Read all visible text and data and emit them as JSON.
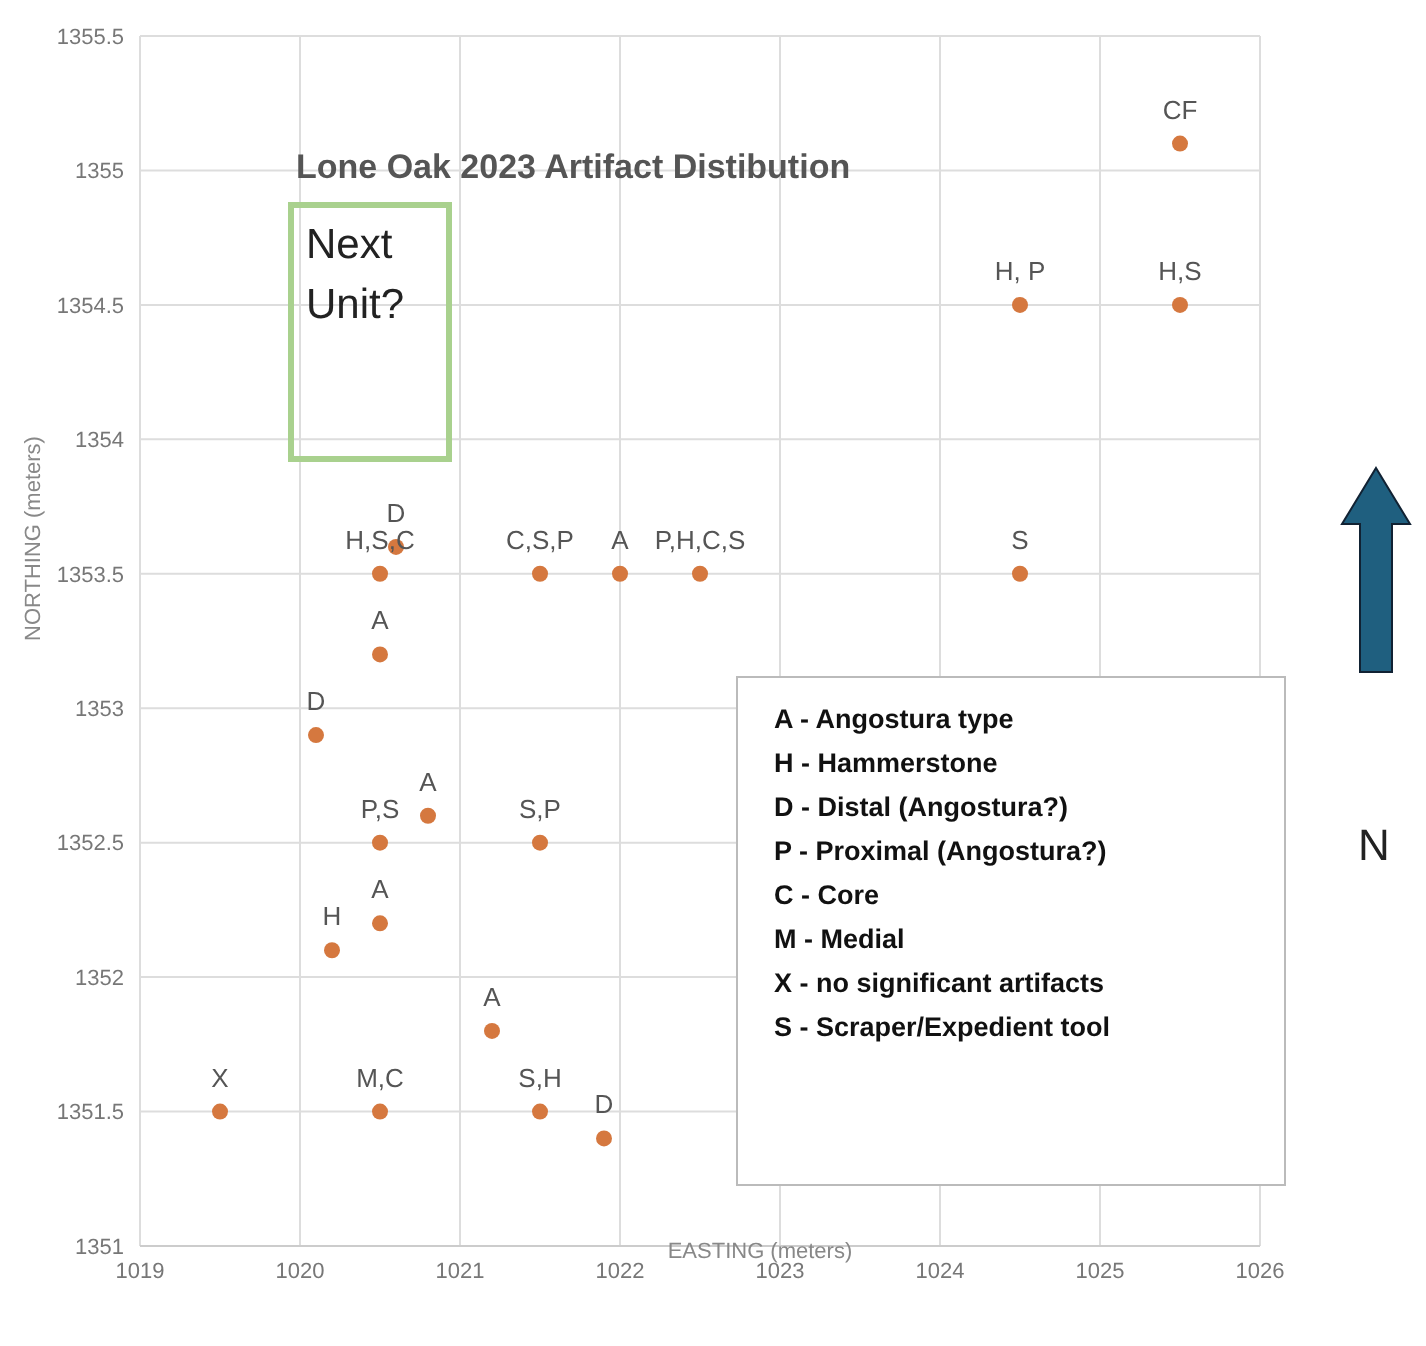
{
  "chart_data": {
    "type": "scatter",
    "title": "Lone Oak 2023 Artifact Distibution",
    "xlabel": "EASTING (meters)",
    "ylabel": "NORTHING (meters)",
    "x": [
      1019.5,
      1020.5,
      1021.5,
      1021.9,
      1021.2,
      1020.2,
      1020.5,
      1020.5,
      1020.8,
      1021.5,
      1020.1,
      1020.5,
      1020.5,
      1020.6,
      1021.5,
      1022,
      1022.5,
      1024.5,
      1024.5,
      1025.5,
      1025.5
    ],
    "series": [
      {
        "color": "#d5783f",
        "values": [
          1351.5,
          1351.5,
          1351.5,
          1351.4,
          1351.8,
          1352.1,
          1352.2,
          1352.5,
          1352.6,
          1352.5,
          1352.9,
          1353.2,
          1353.5,
          1353.6,
          1353.5,
          1353.5,
          1353.5,
          1353.5,
          1354.5,
          1354.5,
          1355.1
        ],
        "value_labels": [
          "X",
          "M,C",
          "S,H",
          "D",
          "A",
          "H",
          "A",
          "P,S",
          "A",
          "S,P",
          "D",
          "A",
          "H,S,C",
          "D",
          "C,S,P",
          "A",
          "P,H,C,S",
          "S",
          "H, P",
          "H,S",
          "CF"
        ]
      }
    ],
    "xlim": [
      1019,
      1026
    ],
    "xticks": [
      1019,
      1020,
      1021,
      1022,
      1023,
      1024,
      1025,
      1026
    ],
    "ylim": [
      1351,
      1355.5
    ],
    "yticks": [
      1351,
      1351.5,
      1352,
      1352.5,
      1353,
      1353.5,
      1354,
      1354.5,
      1355,
      1355.5
    ],
    "grid": true,
    "marker": "circle",
    "annotations": [
      "Next Unit?",
      "N",
      "A - Angostura type",
      "H - Hammerstone",
      "D - Distal (Angostura?)",
      "P - Proximal (Angostura?)",
      "C - Core",
      "M - Medial",
      "X - no significant artifacts",
      "S - Scraper/Expedient tool"
    ]
  }
}
